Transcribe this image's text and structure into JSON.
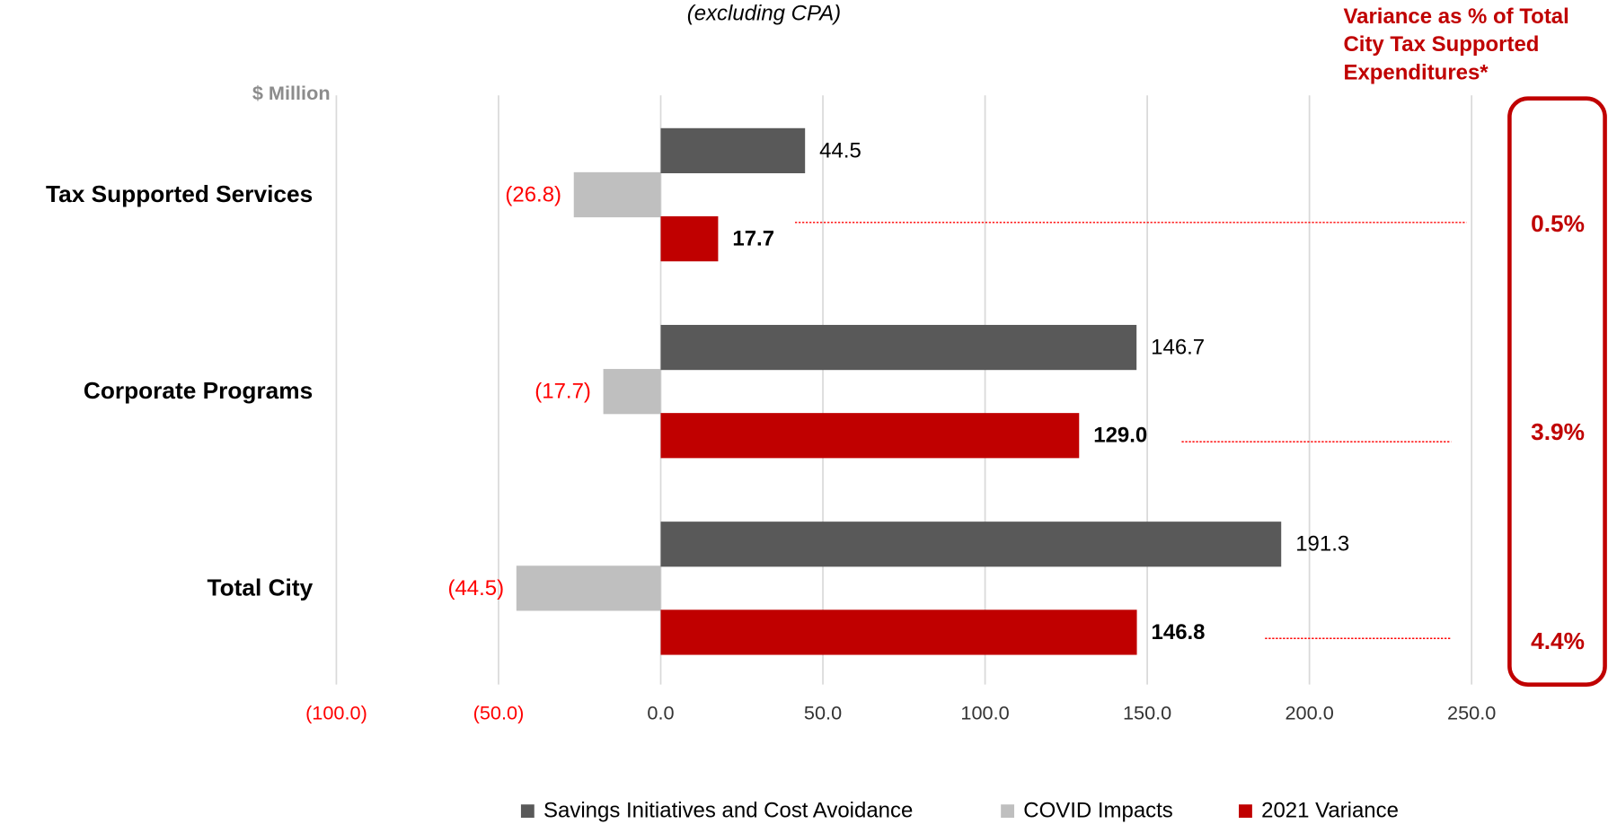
{
  "chart_data": {
    "type": "hbar",
    "title": "(excluding CPA)",
    "axis_label": "$ Million",
    "categories": [
      "Tax Supported Services",
      "Corporate Programs",
      "Total City"
    ],
    "series": [
      {
        "name": "Savings Initiatives and Cost Avoidance",
        "color": "#595959",
        "values": [
          44.5,
          146.7,
          191.3
        ],
        "value_labels": [
          "44.5",
          "146.7",
          "191.3"
        ]
      },
      {
        "name": "COVID Impacts",
        "color": "#bfbfbf",
        "values": [
          -26.8,
          -17.7,
          -44.5
        ],
        "value_labels": [
          "(26.8)",
          "(17.7)",
          "(44.5)"
        ]
      },
      {
        "name": "2021 Variance",
        "color": "#c00000",
        "values": [
          17.7,
          129.0,
          146.8
        ],
        "value_labels": [
          "17.7",
          "129.0",
          "146.8"
        ]
      }
    ],
    "xlim": [
      -100,
      250
    ],
    "xticks": [
      {
        "value": -100,
        "label": "(100.0)"
      },
      {
        "value": -50,
        "label": "(50.0)"
      },
      {
        "value": 0,
        "label": "0.0"
      },
      {
        "value": 50,
        "label": "50.0"
      },
      {
        "value": 100,
        "label": "100.0"
      },
      {
        "value": 150,
        "label": "150.0"
      },
      {
        "value": 200,
        "label": "200.0"
      },
      {
        "value": 250,
        "label": "250.0"
      }
    ],
    "grid": true,
    "side_panel": {
      "title_lines": [
        "Variance as % of Total",
        "City Tax Supported",
        "Expenditures*"
      ],
      "labels": [
        "0.5%",
        "3.9%",
        "4.4%"
      ]
    }
  }
}
